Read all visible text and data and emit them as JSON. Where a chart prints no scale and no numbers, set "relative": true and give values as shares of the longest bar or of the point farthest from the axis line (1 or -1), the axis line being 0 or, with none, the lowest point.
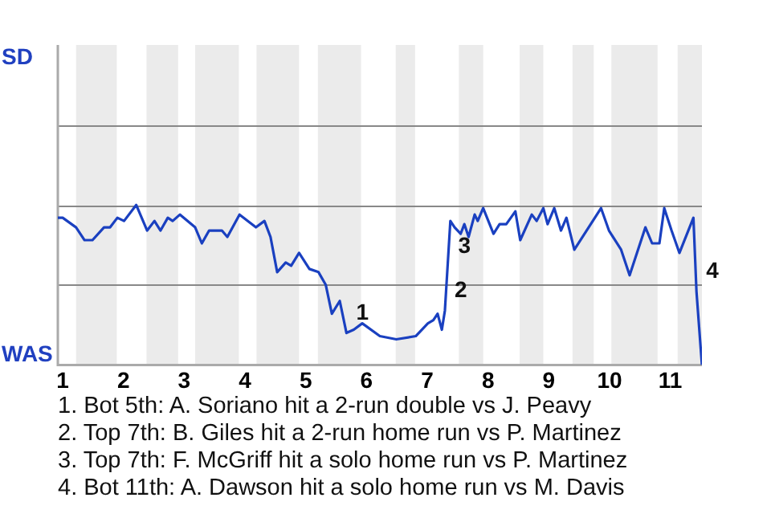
{
  "chart_data": {
    "type": "line",
    "relative": true,
    "xlim": [
      0.92,
      11.52
    ],
    "xticks": [
      1,
      2,
      3,
      4,
      5,
      6,
      7,
      8,
      9,
      10,
      11
    ],
    "ref_lines": [
      {
        "axis": "y",
        "value": 0.5,
        "color": "#888888"
      },
      {
        "axis": "y",
        "value": 1,
        "color": "#888888"
      },
      {
        "axis": "y",
        "value": 1.5,
        "color": "#888888"
      }
    ],
    "legend": false,
    "marker": "none",
    "line_style": "solid",
    "bands": [
      {
        "axis": "x",
        "from": 1.22,
        "to": 1.89,
        "color": "#ebebeb"
      },
      {
        "axis": "x",
        "from": 2.38,
        "to": 2.9,
        "color": "#ebebeb"
      },
      {
        "axis": "x",
        "from": 3.18,
        "to": 3.9,
        "color": "#ebebeb"
      },
      {
        "axis": "x",
        "from": 4.19,
        "to": 4.89,
        "color": "#ebebeb"
      },
      {
        "axis": "x",
        "from": 5.2,
        "to": 5.91,
        "color": "#ebebeb"
      },
      {
        "axis": "x",
        "from": 6.48,
        "to": 6.8,
        "color": "#ebebeb"
      },
      {
        "axis": "x",
        "from": 7.52,
        "to": 7.92,
        "color": "#ebebeb"
      },
      {
        "axis": "x",
        "from": 8.52,
        "to": 8.91,
        "color": "#ebebeb"
      },
      {
        "axis": "x",
        "from": 9.39,
        "to": 9.74,
        "color": "#ebebeb"
      },
      {
        "axis": "x",
        "from": 10.03,
        "to": 10.79,
        "color": "#ebebeb"
      },
      {
        "axis": "x",
        "from": 11.12,
        "to": 11.52,
        "color": "#ebebeb"
      }
    ],
    "series": [
      {
        "color": "#1a40c0",
        "x": [
          0.92,
          1,
          1.22,
          1.36,
          1.49,
          1.68,
          1.78,
          1.9,
          2.01,
          2.21,
          2.39,
          2.51,
          2.61,
          2.73,
          2.81,
          2.93,
          3.18,
          3.29,
          3.41,
          3.62,
          3.71,
          3.91,
          4.18,
          4.32,
          4.42,
          4.53,
          4.67,
          4.76,
          4.89,
          5.06,
          5.21,
          5.33,
          5.43,
          5.56,
          5.67,
          5.79,
          5.93,
          6.22,
          6.49,
          6.81,
          7.01,
          7.1,
          7.17,
          7.24,
          7.29,
          7.38,
          7.45,
          7.55,
          7.61,
          7.68,
          7.78,
          7.83,
          7.92,
          8.09,
          8.19,
          8.3,
          8.45,
          8.53,
          8.72,
          8.8,
          8.91,
          8.98,
          9.09,
          9.2,
          9.29,
          9.42,
          9.86,
          9.99,
          10.19,
          10.33,
          10.59,
          10.7,
          10.82,
          10.9,
          11.02,
          11.15,
          11.38,
          11.43,
          11.52
        ],
        "values": [
          0.92,
          0.92,
          0.86,
          0.78,
          0.78,
          0.86,
          0.86,
          0.92,
          0.9,
          1,
          0.84,
          0.9,
          0.84,
          0.92,
          0.9,
          0.94,
          0.86,
          0.76,
          0.84,
          0.84,
          0.8,
          0.94,
          0.86,
          0.9,
          0.8,
          0.58,
          0.64,
          0.62,
          0.7,
          0.6,
          0.58,
          0.5,
          0.32,
          0.4,
          0.2,
          0.22,
          0.26,
          0.18,
          0.16,
          0.18,
          0.26,
          0.28,
          0.32,
          0.22,
          0.34,
          0.9,
          0.86,
          0.82,
          0.88,
          0.8,
          0.94,
          0.9,
          0.98,
          0.82,
          0.88,
          0.88,
          0.96,
          0.78,
          0.94,
          0.9,
          0.98,
          0.88,
          0.98,
          0.84,
          0.92,
          0.72,
          0.98,
          0.84,
          0.72,
          0.56,
          0.86,
          0.76,
          0.76,
          0.98,
          0.84,
          0.7,
          0.92,
          0.46,
          0
        ]
      }
    ],
    "annotations": [
      {
        "text": "1",
        "x": 5.67,
        "y": 0.2
      },
      {
        "text": "2",
        "x": 7.29,
        "y": 0.34
      },
      {
        "text": "3",
        "x": 7.35,
        "y": 0.62
      },
      {
        "text": "4",
        "x": 11.43,
        "y": 0.46
      },
      "SD",
      "WAS",
      "1. Bot 5th: A. Soriano hit a 2-run double vs J. Peavy",
      "2. Top 7th: B. Giles hit a 2-run home run vs P. Martinez",
      "3. Top 7th: F. McGriff hit a solo home run vs P. Martinez",
      "4. Bot 11th: A. Dawson hit a solo home run vs M. Davis"
    ]
  }
}
